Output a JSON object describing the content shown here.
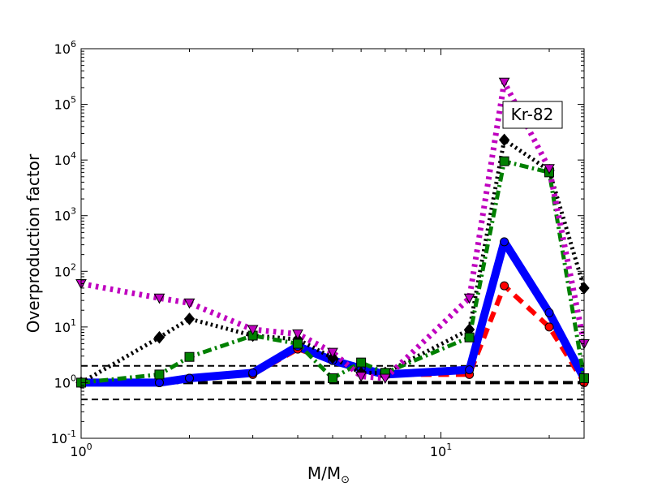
{
  "chart_data": {
    "type": "line",
    "x_scale": "log",
    "y_scale": "log",
    "xlim": [
      1,
      25
    ],
    "ylim": [
      0.1,
      1000000
    ],
    "xlabel": "M/M",
    "xlabel_subscript": "⊙",
    "ylabel": "Overproduction factor",
    "annotation": "Kr-82",
    "grid": false,
    "x_ticks": [
      {
        "value": 1,
        "base": "10",
        "exp": "0"
      },
      {
        "value": 10,
        "base": "10",
        "exp": "1"
      }
    ],
    "y_ticks": [
      {
        "value": 0.1,
        "base": "10",
        "exp": "-1"
      },
      {
        "value": 1,
        "base": "10",
        "exp": "0"
      },
      {
        "value": 10,
        "base": "10",
        "exp": "1"
      },
      {
        "value": 100,
        "base": "10",
        "exp": "2"
      },
      {
        "value": 1000,
        "base": "10",
        "exp": "3"
      },
      {
        "value": 10000,
        "base": "10",
        "exp": "4"
      },
      {
        "value": 100000,
        "base": "10",
        "exp": "5"
      },
      {
        "value": 1000000,
        "base": "10",
        "exp": "6"
      }
    ],
    "reference_lines": [
      {
        "y": 2.0,
        "color": "#000000",
        "style": "dashed-thin"
      },
      {
        "y": 1.0,
        "color": "#000000",
        "style": "dashed-thick"
      },
      {
        "y": 0.5,
        "color": "#000000",
        "style": "dashed-thin"
      }
    ],
    "series": [
      {
        "color": "#ff0000",
        "style": "dashed",
        "marker": "circle",
        "line_width": 6,
        "x": [
          1,
          1.65,
          2,
          3,
          4,
          5,
          6,
          7,
          12,
          15,
          20,
          25
        ],
        "y": [
          1.0,
          1.0,
          1.2,
          1.4,
          4.0,
          2.5,
          1.8,
          1.4,
          1.4,
          55,
          10,
          1.0
        ]
      },
      {
        "color": "#0000ff",
        "style": "solid",
        "marker": "circle",
        "line_width": 10,
        "x": [
          1,
          1.65,
          2,
          3,
          4,
          5,
          6,
          7,
          12,
          15,
          20,
          25
        ],
        "y": [
          1.0,
          1.0,
          1.2,
          1.5,
          4.5,
          2.5,
          1.8,
          1.4,
          1.7,
          340,
          18,
          1.2
        ]
      },
      {
        "color": "#000000",
        "style": "dotted",
        "marker": "diamond",
        "line_width": 5,
        "x": [
          1,
          1.65,
          2,
          3,
          4,
          5,
          6,
          7,
          12,
          15,
          20,
          25
        ],
        "y": [
          1.0,
          6.5,
          14,
          7.0,
          6.0,
          2.8,
          1.5,
          1.5,
          9.0,
          23000,
          6500,
          50
        ]
      },
      {
        "color": "#008000",
        "style": "dashdot",
        "marker": "square",
        "line_width": 5,
        "x": [
          1,
          1.65,
          2,
          3,
          4,
          5,
          6,
          7,
          12,
          15,
          20,
          25
        ],
        "y": [
          1.0,
          1.4,
          2.9,
          7.0,
          5.0,
          1.2,
          2.3,
          1.5,
          6.5,
          9500,
          6000,
          1.2
        ]
      },
      {
        "color": "#bf00bf",
        "style": "dotted",
        "marker": "triangle-down",
        "line_width": 7,
        "x": [
          1,
          1.65,
          2,
          3,
          4,
          5,
          6,
          7,
          12,
          15,
          20,
          25
        ],
        "y": [
          60,
          33,
          27,
          9.0,
          7.5,
          3.5,
          1.3,
          1.2,
          33,
          250000,
          7000,
          5.0
        ]
      }
    ]
  }
}
